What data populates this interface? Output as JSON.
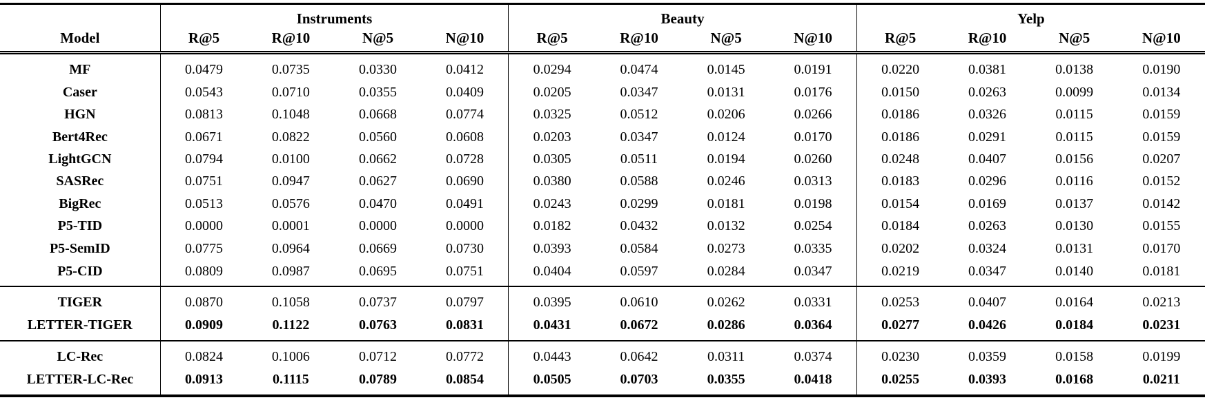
{
  "table": {
    "model_header": "Model",
    "groups": [
      {
        "label": "Instruments",
        "metrics": [
          "R@5",
          "R@10",
          "N@5",
          "N@10"
        ]
      },
      {
        "label": "Beauty",
        "metrics": [
          "R@5",
          "R@10",
          "N@5",
          "N@10"
        ]
      },
      {
        "label": "Yelp",
        "metrics": [
          "R@5",
          "R@10",
          "N@5",
          "N@10"
        ]
      }
    ],
    "sections": [
      {
        "name": "baselines",
        "rows": [
          {
            "model": "MF",
            "bold": false,
            "values": [
              "0.0479",
              "0.0735",
              "0.0330",
              "0.0412",
              "0.0294",
              "0.0474",
              "0.0145",
              "0.0191",
              "0.0220",
              "0.0381",
              "0.0138",
              "0.0190"
            ]
          },
          {
            "model": "Caser",
            "bold": false,
            "values": [
              "0.0543",
              "0.0710",
              "0.0355",
              "0.0409",
              "0.0205",
              "0.0347",
              "0.0131",
              "0.0176",
              "0.0150",
              "0.0263",
              "0.0099",
              "0.0134"
            ]
          },
          {
            "model": "HGN",
            "bold": false,
            "values": [
              "0.0813",
              "0.1048",
              "0.0668",
              "0.0774",
              "0.0325",
              "0.0512",
              "0.0206",
              "0.0266",
              "0.0186",
              "0.0326",
              "0.0115",
              "0.0159"
            ]
          },
          {
            "model": "Bert4Rec",
            "bold": false,
            "values": [
              "0.0671",
              "0.0822",
              "0.0560",
              "0.0608",
              "0.0203",
              "0.0347",
              "0.0124",
              "0.0170",
              "0.0186",
              "0.0291",
              "0.0115",
              "0.0159"
            ]
          },
          {
            "model": "LightGCN",
            "bold": false,
            "values": [
              "0.0794",
              "0.0100",
              "0.0662",
              "0.0728",
              "0.0305",
              "0.0511",
              "0.0194",
              "0.0260",
              "0.0248",
              "0.0407",
              "0.0156",
              "0.0207"
            ]
          },
          {
            "model": "SASRec",
            "bold": false,
            "values": [
              "0.0751",
              "0.0947",
              "0.0627",
              "0.0690",
              "0.0380",
              "0.0588",
              "0.0246",
              "0.0313",
              "0.0183",
              "0.0296",
              "0.0116",
              "0.0152"
            ]
          },
          {
            "model": "BigRec",
            "bold": false,
            "values": [
              "0.0513",
              "0.0576",
              "0.0470",
              "0.0491",
              "0.0243",
              "0.0299",
              "0.0181",
              "0.0198",
              "0.0154",
              "0.0169",
              "0.0137",
              "0.0142"
            ]
          },
          {
            "model": "P5-TID",
            "bold": false,
            "values": [
              "0.0000",
              "0.0001",
              "0.0000",
              "0.0000",
              "0.0182",
              "0.0432",
              "0.0132",
              "0.0254",
              "0.0184",
              "0.0263",
              "0.0130",
              "0.0155"
            ]
          },
          {
            "model": "P5-SemID",
            "bold": false,
            "values": [
              "0.0775",
              "0.0964",
              "0.0669",
              "0.0730",
              "0.0393",
              "0.0584",
              "0.0273",
              "0.0335",
              "0.0202",
              "0.0324",
              "0.0131",
              "0.0170"
            ]
          },
          {
            "model": "P5-CID",
            "bold": false,
            "values": [
              "0.0809",
              "0.0987",
              "0.0695",
              "0.0751",
              "0.0404",
              "0.0597",
              "0.0284",
              "0.0347",
              "0.0219",
              "0.0347",
              "0.0140",
              "0.0181"
            ]
          }
        ]
      },
      {
        "name": "tiger",
        "rows": [
          {
            "model": "TIGER",
            "bold": false,
            "values": [
              "0.0870",
              "0.1058",
              "0.0737",
              "0.0797",
              "0.0395",
              "0.0610",
              "0.0262",
              "0.0331",
              "0.0253",
              "0.0407",
              "0.0164",
              "0.0213"
            ]
          },
          {
            "model": "LETTER-TIGER",
            "bold": true,
            "values": [
              "0.0909",
              "0.1122",
              "0.0763",
              "0.0831",
              "0.0431",
              "0.0672",
              "0.0286",
              "0.0364",
              "0.0277",
              "0.0426",
              "0.0184",
              "0.0231"
            ]
          }
        ]
      },
      {
        "name": "lc-rec",
        "rows": [
          {
            "model": "LC-Rec",
            "bold": false,
            "values": [
              "0.0824",
              "0.1006",
              "0.0712",
              "0.0772",
              "0.0443",
              "0.0642",
              "0.0311",
              "0.0374",
              "0.0230",
              "0.0359",
              "0.0158",
              "0.0199"
            ]
          },
          {
            "model": "LETTER-LC-Rec",
            "bold": true,
            "values": [
              "0.0913",
              "0.1115",
              "0.0789",
              "0.0854",
              "0.0505",
              "0.0703",
              "0.0355",
              "0.0418",
              "0.0255",
              "0.0393",
              "0.0168",
              "0.0211"
            ]
          }
        ]
      }
    ]
  }
}
